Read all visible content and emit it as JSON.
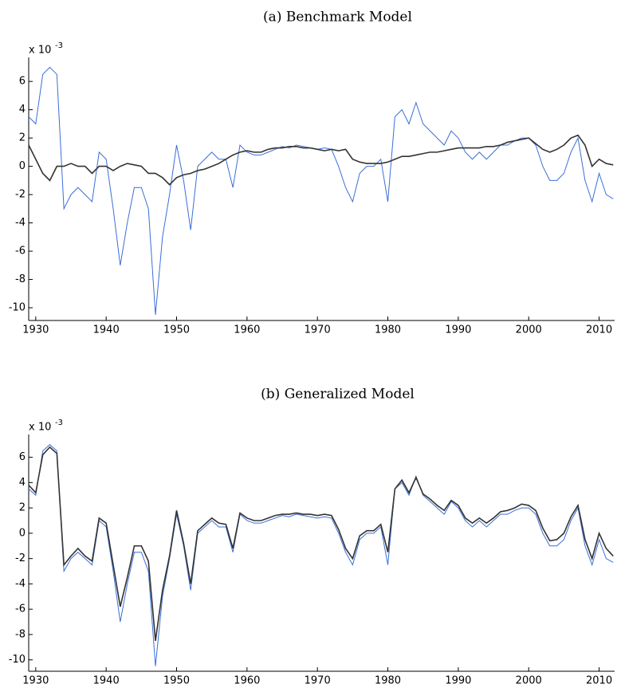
{
  "chart_data": [
    {
      "type": "line",
      "title": "(a) Benchmark Model",
      "multiplier": {
        "base": "x 10",
        "exponent": "-3"
      },
      "x": [
        1929,
        1930,
        1931,
        1932,
        1933,
        1934,
        1935,
        1936,
        1937,
        1938,
        1939,
        1940,
        1941,
        1942,
        1943,
        1944,
        1945,
        1946,
        1947,
        1948,
        1949,
        1950,
        1951,
        1952,
        1953,
        1954,
        1955,
        1956,
        1957,
        1958,
        1959,
        1960,
        1961,
        1962,
        1963,
        1964,
        1965,
        1966,
        1967,
        1968,
        1969,
        1970,
        1971,
        1972,
        1973,
        1974,
        1975,
        1976,
        1977,
        1978,
        1979,
        1980,
        1981,
        1982,
        1983,
        1984,
        1985,
        1986,
        1987,
        1988,
        1989,
        1990,
        1991,
        1992,
        1993,
        1994,
        1995,
        1996,
        1997,
        1998,
        1999,
        2000,
        2001,
        2002,
        2003,
        2004,
        2005,
        2006,
        2007,
        2008,
        2009,
        2010,
        2011,
        2012
      ],
      "series": [
        {
          "color": "#3a6fd8",
          "values": [
            3.5,
            3,
            6.5,
            7,
            6.5,
            -3,
            -2,
            -1.5,
            -2,
            -2.5,
            1,
            0.5,
            -3,
            -7,
            -4,
            -1.5,
            -1.5,
            -3,
            -10.5,
            -5,
            -2,
            1.5,
            -1,
            -4.5,
            0,
            0.5,
            1,
            0.5,
            0.5,
            -1.5,
            1.5,
            1,
            0.8,
            0.8,
            1,
            1.2,
            1.4,
            1.3,
            1.5,
            1.4,
            1.3,
            1.2,
            1.3,
            1.2,
            0,
            -1.5,
            -2.5,
            -0.5,
            0,
            0,
            0.5,
            -2.5,
            3.5,
            4,
            3,
            4.5,
            3,
            2.5,
            2,
            1.5,
            2.5,
            2,
            1,
            0.5,
            1,
            0.5,
            1,
            1.5,
            1.5,
            1.8,
            2,
            2,
            1.5,
            0,
            -1,
            -1,
            -0.5,
            1,
            2,
            -1,
            -2.5,
            -0.5,
            -2,
            -2.3
          ]
        },
        {
          "color": "#333333",
          "values": [
            1.5,
            0.5,
            -0.5,
            -1,
            0,
            0,
            0.2,
            0,
            0,
            -0.5,
            0,
            0,
            -0.3,
            0,
            0.2,
            0.1,
            0,
            -0.5,
            -0.5,
            -0.8,
            -1.3,
            -0.8,
            -0.6,
            -0.5,
            -0.3,
            -0.2,
            0,
            0.2,
            0.5,
            0.8,
            1,
            1.1,
            1,
            1,
            1.2,
            1.3,
            1.3,
            1.4,
            1.4,
            1.3,
            1.3,
            1.2,
            1.1,
            1.2,
            1.1,
            1.2,
            0.5,
            0.3,
            0.2,
            0.2,
            0.2,
            0.3,
            0.5,
            0.7,
            0.7,
            0.8,
            0.9,
            1,
            1,
            1.1,
            1.2,
            1.3,
            1.3,
            1.3,
            1.3,
            1.4,
            1.4,
            1.5,
            1.7,
            1.8,
            1.9,
            2,
            1.6,
            1.2,
            1,
            1.2,
            1.5,
            2,
            2.2,
            1.5,
            0,
            0.5,
            0.2,
            0.1
          ]
        }
      ],
      "xlim": [
        1929,
        2012.2
      ],
      "xticks": [
        1930,
        1940,
        1950,
        1960,
        1970,
        1980,
        1990,
        2000,
        2010
      ],
      "ylim": [
        -10.9,
        7.7
      ],
      "yticks": [
        -10,
        -8,
        -6,
        -4,
        -2,
        0,
        2,
        4,
        6
      ]
    },
    {
      "type": "line",
      "title": "(b) Generalized Model",
      "multiplier": {
        "base": "x 10",
        "exponent": "-3"
      },
      "x": [
        1929,
        1930,
        1931,
        1932,
        1933,
        1934,
        1935,
        1936,
        1937,
        1938,
        1939,
        1940,
        1941,
        1942,
        1943,
        1944,
        1945,
        1946,
        1947,
        1948,
        1949,
        1950,
        1951,
        1952,
        1953,
        1954,
        1955,
        1956,
        1957,
        1958,
        1959,
        1960,
        1961,
        1962,
        1963,
        1964,
        1965,
        1966,
        1967,
        1968,
        1969,
        1970,
        1971,
        1972,
        1973,
        1974,
        1975,
        1976,
        1977,
        1978,
        1979,
        1980,
        1981,
        1982,
        1983,
        1984,
        1985,
        1986,
        1987,
        1988,
        1989,
        1990,
        1991,
        1992,
        1993,
        1994,
        1995,
        1996,
        1997,
        1998,
        1999,
        2000,
        2001,
        2002,
        2003,
        2004,
        2005,
        2006,
        2007,
        2008,
        2009,
        2010,
        2011,
        2012
      ],
      "series": [
        {
          "color": "#3a6fd8",
          "values": [
            3.5,
            3,
            6.5,
            7,
            6.5,
            -3,
            -2,
            -1.5,
            -2,
            -2.5,
            1,
            0.5,
            -3,
            -7,
            -4,
            -1.5,
            -1.5,
            -3,
            -10.5,
            -5,
            -2,
            1.5,
            -1,
            -4.5,
            0,
            0.5,
            1,
            0.5,
            0.5,
            -1.5,
            1.5,
            1,
            0.8,
            0.8,
            1,
            1.2,
            1.4,
            1.3,
            1.5,
            1.4,
            1.3,
            1.2,
            1.3,
            1.2,
            0,
            -1.5,
            -2.5,
            -0.5,
            0,
            0,
            0.5,
            -2.5,
            3.5,
            4,
            3,
            4.5,
            3,
            2.5,
            2,
            1.5,
            2.5,
            2,
            1,
            0.5,
            1,
            0.5,
            1,
            1.5,
            1.5,
            1.8,
            2,
            2,
            1.5,
            0,
            -1,
            -1,
            -0.5,
            1,
            2,
            -1,
            -2.5,
            -0.5,
            -2,
            -2.3
          ]
        },
        {
          "color": "#333333",
          "values": [
            3.8,
            3.2,
            6.2,
            6.8,
            6.3,
            -2.5,
            -1.8,
            -1.2,
            -1.8,
            -2.2,
            1.2,
            0.8,
            -2.5,
            -5.8,
            -3.5,
            -1,
            -1,
            -2.2,
            -8.5,
            -4.5,
            -1.8,
            1.8,
            -0.8,
            -4,
            0.2,
            0.7,
            1.2,
            0.8,
            0.7,
            -1.2,
            1.6,
            1.2,
            1,
            1,
            1.2,
            1.4,
            1.5,
            1.5,
            1.6,
            1.5,
            1.5,
            1.4,
            1.5,
            1.4,
            0.3,
            -1.2,
            -2,
            -0.2,
            0.2,
            0.2,
            0.7,
            -1.5,
            3.5,
            4.2,
            3.2,
            4.4,
            3.1,
            2.7,
            2.2,
            1.8,
            2.6,
            2.2,
            1.2,
            0.8,
            1.2,
            0.8,
            1.2,
            1.7,
            1.8,
            2,
            2.3,
            2.2,
            1.8,
            0.4,
            -0.6,
            -0.5,
            0,
            1.3,
            2.2,
            -0.5,
            -2,
            0,
            -1.2,
            -1.8
          ]
        }
      ],
      "xlim": [
        1929,
        2012.2
      ],
      "xticks": [
        1930,
        1940,
        1950,
        1960,
        1970,
        1980,
        1990,
        2000,
        2010
      ],
      "ylim": [
        -10.9,
        7.8
      ],
      "yticks": [
        -10,
        -8,
        -6,
        -4,
        -2,
        0,
        2,
        4,
        6
      ]
    }
  ]
}
